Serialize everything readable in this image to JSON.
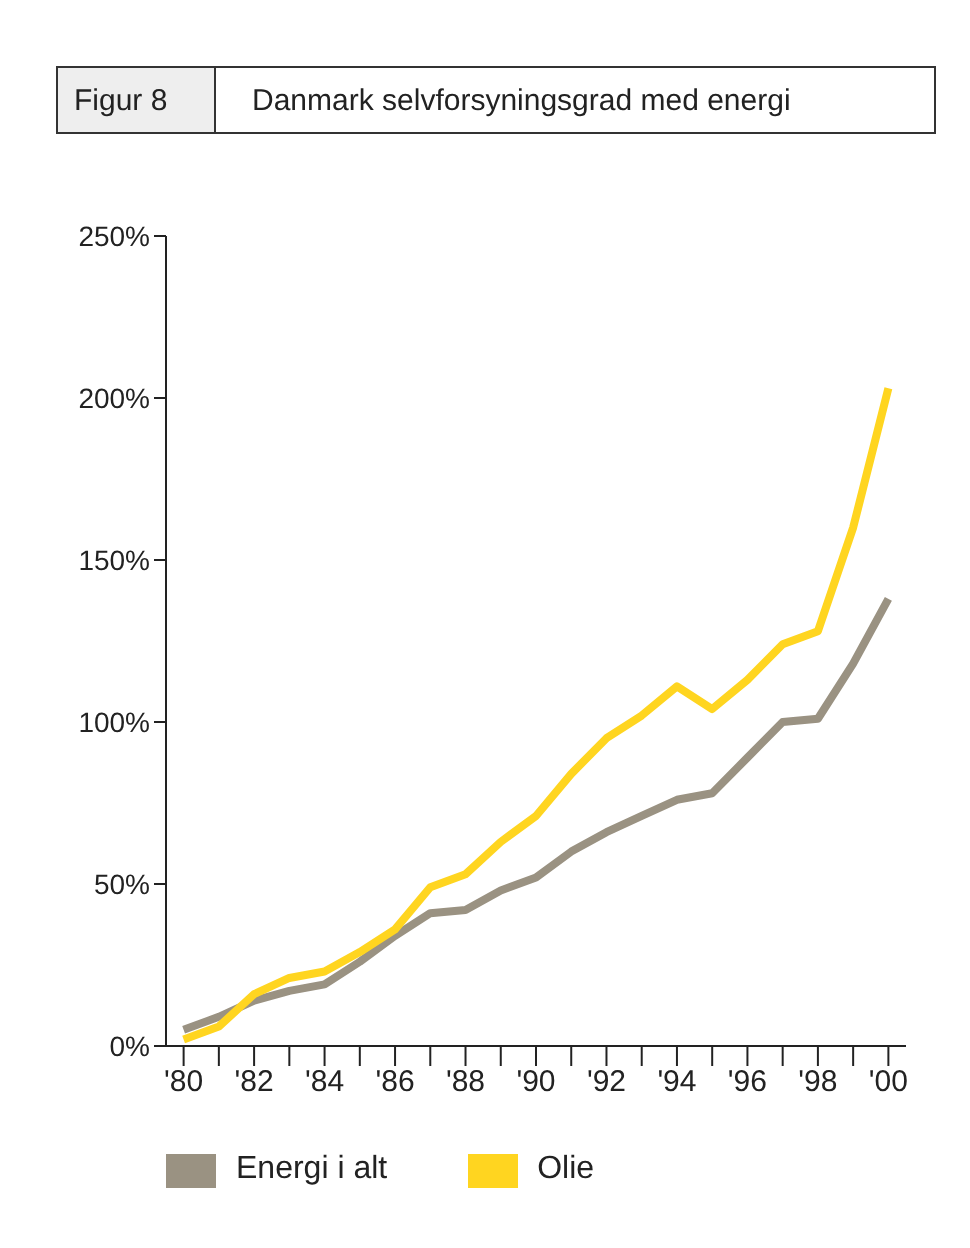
{
  "chart_data": {
    "type": "line",
    "title": "Danmark selvforsyningsgrad med energi",
    "annotations": [
      "Figur 8"
    ],
    "x": [
      1980,
      1981,
      1982,
      1983,
      1984,
      1985,
      1986,
      1987,
      1988,
      1989,
      1990,
      1991,
      1992,
      1993,
      1994,
      1995,
      1996,
      1997,
      1998,
      1999,
      2000
    ],
    "series": [
      {
        "name": "Energi i alt",
        "color": "#9a9282",
        "values": [
          5,
          9,
          14,
          17,
          19,
          26,
          34,
          41,
          42,
          48,
          52,
          60,
          66,
          71,
          76,
          78,
          89,
          100,
          101,
          118,
          138
        ]
      },
      {
        "name": "Olie",
        "color": "#ffd520",
        "values": [
          2,
          6,
          16,
          21,
          23,
          29,
          36,
          49,
          53,
          63,
          71,
          84,
          95,
          102,
          111,
          104,
          113,
          124,
          128,
          160,
          203
        ]
      }
    ],
    "xlim": [
      1979.5,
      2000.5
    ],
    "xticks": [
      {
        "value": 1980,
        "label": "'80"
      },
      {
        "value": 1981,
        "label": null
      },
      {
        "value": 1982,
        "label": "'82"
      },
      {
        "value": 1983,
        "label": null
      },
      {
        "value": 1984,
        "label": "'84"
      },
      {
        "value": 1985,
        "label": null
      },
      {
        "value": 1986,
        "label": "'86"
      },
      {
        "value": 1987,
        "label": null
      },
      {
        "value": 1988,
        "label": "'88"
      },
      {
        "value": 1989,
        "label": null
      },
      {
        "value": 1990,
        "label": "'90"
      },
      {
        "value": 1991,
        "label": null
      },
      {
        "value": 1992,
        "label": "'92"
      },
      {
        "value": 1993,
        "label": null
      },
      {
        "value": 1994,
        "label": "'94"
      },
      {
        "value": 1995,
        "label": null
      },
      {
        "value": 1996,
        "label": "'96"
      },
      {
        "value": 1997,
        "label": null
      },
      {
        "value": 1998,
        "label": "'98"
      },
      {
        "value": 1999,
        "label": null
      },
      {
        "value": 2000,
        "label": "'00"
      }
    ],
    "ylim": [
      0,
      250
    ],
    "yticks": [
      {
        "value": 0,
        "label": "0%"
      },
      {
        "value": 50,
        "label": "50%"
      },
      {
        "value": 100,
        "label": "100%"
      },
      {
        "value": 150,
        "label": "150%"
      },
      {
        "value": 200,
        "label": "200%"
      },
      {
        "value": 250,
        "label": "250%"
      }
    ],
    "grid": false,
    "legend": "bottom",
    "marker": "none",
    "line_style": "solid"
  }
}
